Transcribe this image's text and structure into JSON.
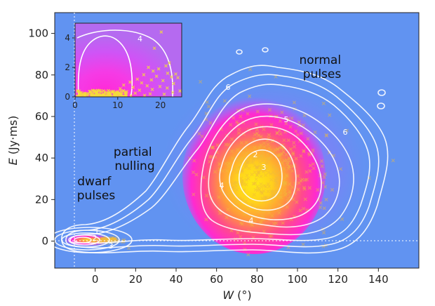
{
  "chart_data": [
    {
      "type": "scatter",
      "subtype": "density-contour",
      "title": "",
      "xlabel_var": "W",
      "xlabel_unit": "(°)",
      "ylabel_var": "E",
      "ylabel_unit": "(Jy·ms)",
      "xlim": [
        -20,
        160
      ],
      "ylim": [
        -13,
        110
      ],
      "x_ticks": [
        "0",
        "20",
        "40",
        "60",
        "80",
        "100",
        "120",
        "140"
      ],
      "y_ticks": [
        "0",
        "20",
        "40",
        "60",
        "80",
        "100"
      ],
      "x_tick_values": [
        0,
        20,
        40,
        60,
        80,
        100,
        120,
        140
      ],
      "y_tick_values": [
        0,
        20,
        40,
        60,
        80,
        100
      ],
      "reference_lines": {
        "x": 0,
        "y": 0,
        "style": "dotted"
      },
      "annotations": [
        {
          "lines": [
            "normal",
            "pulses"
          ],
          "x": 120,
          "y": 85
        },
        {
          "lines": [
            "partial",
            "nulling"
          ],
          "x": 31,
          "y": 40
        },
        {
          "lines": [
            "dwarf",
            "pulses"
          ],
          "x": 7,
          "y": 25
        }
      ],
      "contour_labels": [
        "6",
        "5",
        "6",
        "1",
        "2",
        "3",
        "4",
        "4",
        "3",
        "2"
      ],
      "clusters": [
        {
          "name": "normal",
          "center": [
            85,
            33
          ],
          "spread": [
            16,
            15
          ],
          "count": 480
        },
        {
          "name": "dwarf",
          "center": [
            5,
            0.5
          ],
          "spread": [
            4,
            0.6
          ],
          "count": 110
        }
      ],
      "grid": false,
      "background_color": "#6193f1",
      "scatter_color": "#f1b93a",
      "contour_color": "#ffffff",
      "density_colors": [
        "#c64bff",
        "#ff22dd",
        "#ff3e95",
        "#ffa23a",
        "#ffea16"
      ]
    },
    {
      "type": "scatter",
      "subtype": "inset",
      "xlim": [
        0,
        25
      ],
      "ylim": [
        0,
        5
      ],
      "x_ticks": [
        "0",
        "10",
        "20"
      ],
      "y_ticks": [
        "0",
        "2",
        "4"
      ],
      "x_tick_values": [
        0,
        10,
        20
      ],
      "y_tick_values": [
        0,
        2,
        4
      ],
      "contour_labels": [
        "4"
      ],
      "points": [
        [
          18.6,
          3.3
        ],
        [
          20.2,
          4.4
        ],
        [
          22.1,
          2.3
        ],
        [
          21.3,
          2.1
        ],
        [
          17.2,
          2.0
        ],
        [
          19.6,
          1.9
        ],
        [
          18.3,
          1.75
        ],
        [
          21.7,
          1.6
        ],
        [
          23.6,
          1.55
        ],
        [
          16.1,
          1.5
        ],
        [
          19.1,
          1.4
        ],
        [
          22.6,
          1.35
        ],
        [
          24.1,
          1.3
        ],
        [
          14.6,
          1.2
        ],
        [
          17.9,
          1.15
        ],
        [
          20.6,
          1.1
        ],
        [
          12.9,
          1.0
        ],
        [
          15.6,
          0.95
        ],
        [
          23.1,
          0.9
        ],
        [
          11.4,
          0.8
        ],
        [
          16.9,
          0.75
        ],
        [
          19.9,
          0.7
        ],
        [
          13.6,
          0.65
        ],
        [
          21.6,
          0.6
        ],
        [
          10.6,
          0.55
        ],
        [
          18.1,
          0.5
        ],
        [
          15.1,
          0.45
        ],
        [
          24.6,
          0.4
        ],
        [
          12.1,
          0.35
        ],
        [
          22.9,
          0.3
        ],
        [
          14.1,
          0.25
        ],
        [
          9.6,
          0.3
        ],
        [
          17.6,
          0.2
        ],
        [
          11.9,
          0.15
        ],
        [
          20.9,
          0.18
        ],
        [
          8.1,
          0.22
        ],
        [
          16.3,
          0.1
        ],
        [
          6.6,
          0.12
        ],
        [
          13.1,
          0.08
        ]
      ],
      "dense_band": {
        "x": [
          0.5,
          12
        ],
        "y": [
          0,
          0.45
        ],
        "count": 150
      },
      "background_color": "#bf56f5",
      "scatter_color": "#f4dc3a"
    }
  ]
}
